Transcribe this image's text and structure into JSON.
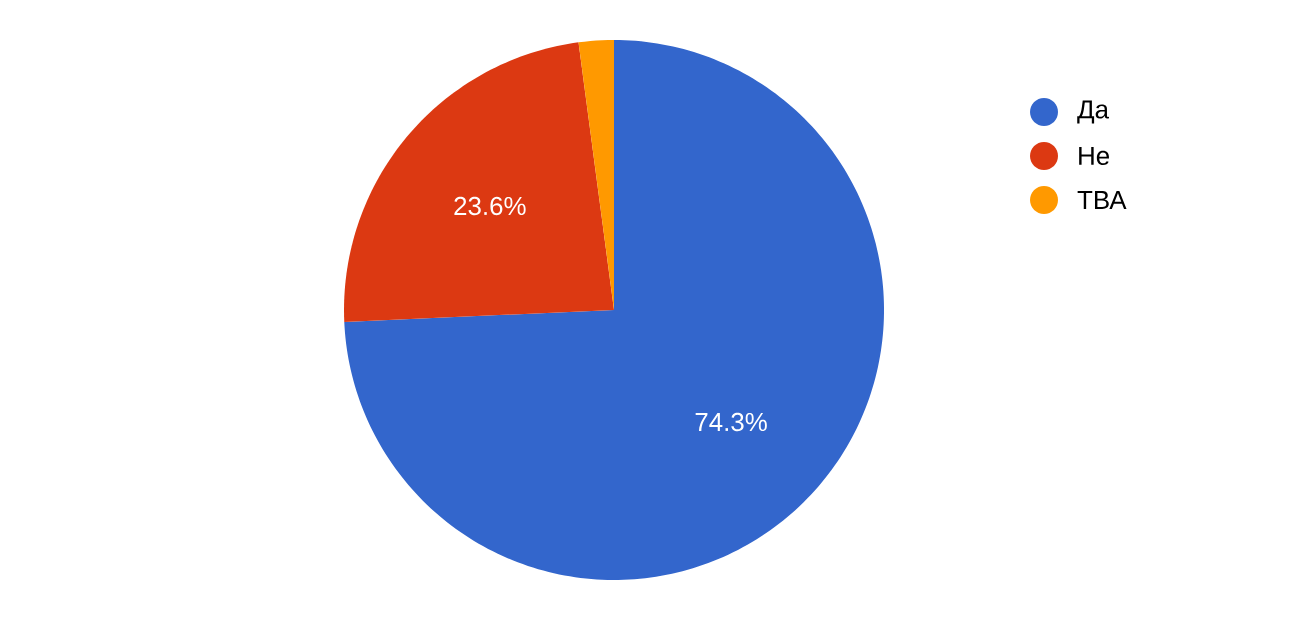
{
  "chart_data": {
    "type": "pie",
    "categories": [
      "Да",
      "Не",
      "ТВА"
    ],
    "values": [
      74.3,
      23.6,
      2.1
    ],
    "colors": [
      "#3366cc",
      "#dc3912",
      "#ff9900"
    ],
    "value_labels": [
      "74.3%",
      "23.6%",
      null
    ],
    "legend": "right"
  }
}
